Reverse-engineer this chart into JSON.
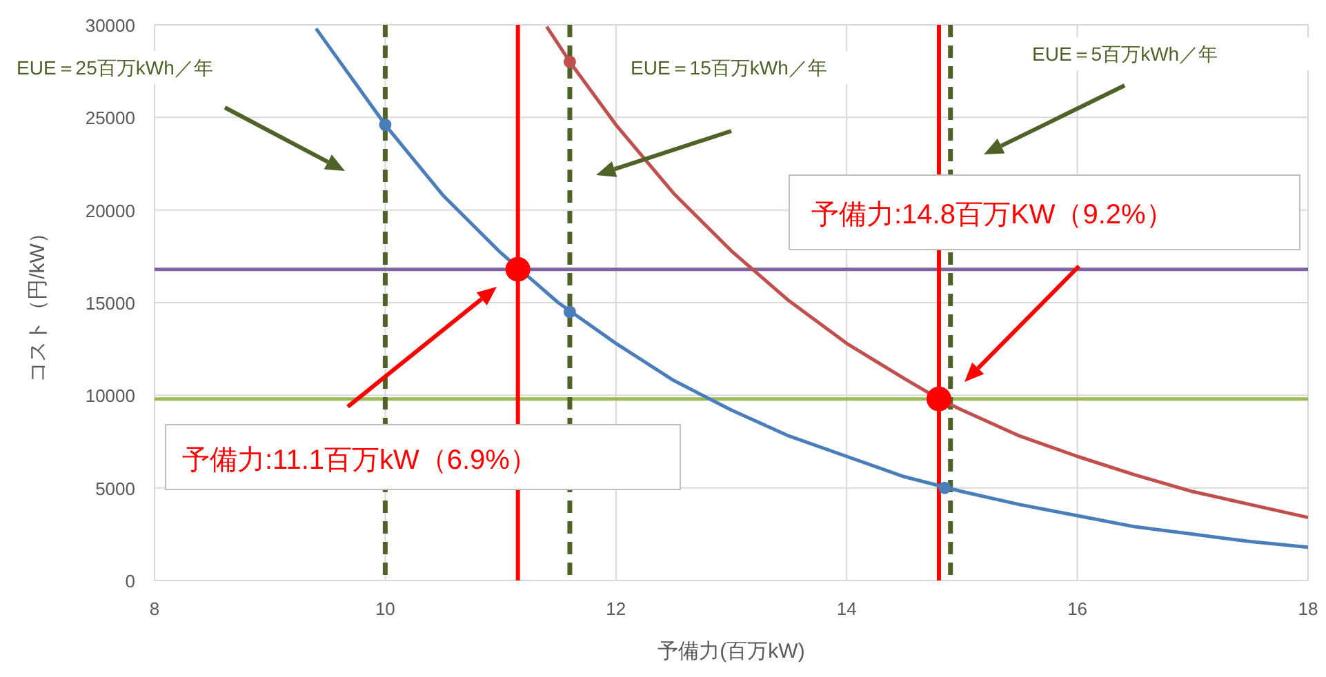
{
  "chart_data": {
    "type": "line",
    "xlabel": "予備力(百万kW)",
    "ylabel": "コスト（円/kW）",
    "xlim": [
      8,
      18
    ],
    "ylim": [
      0,
      30000
    ],
    "xticks": [
      8,
      10,
      12,
      14,
      16,
      18
    ],
    "yticks": [
      0,
      5000,
      10000,
      15000,
      20000,
      25000,
      30000
    ],
    "grid": true,
    "marker": "none",
    "line_style": "solid",
    "series": [
      {
        "color": "#4a7ebb",
        "x": [
          9.4,
          10,
          10.5,
          11,
          11.5,
          12,
          12.5,
          13,
          13.5,
          14,
          14.5,
          15,
          15.5,
          16,
          16.5,
          17,
          17.5,
          18
        ],
        "values": [
          29800,
          24600,
          20800,
          17700,
          15000,
          12800,
          10800,
          9200,
          7800,
          6700,
          5600,
          4800,
          4100,
          3500,
          2900,
          2500,
          2100,
          1800
        ]
      },
      {
        "color": "#c0504d",
        "x": [
          11.4,
          11.6,
          12,
          12.5,
          13,
          13.5,
          14,
          14.5,
          14.8,
          15,
          15.5,
          16,
          16.5,
          17,
          17.5,
          18
        ],
        "values": [
          29900,
          28000,
          24600,
          20900,
          17800,
          15100,
          12800,
          10900,
          9800,
          9200,
          7800,
          6700,
          5700,
          4800,
          4100,
          3400
        ]
      },
      {
        "type": "scatter",
        "color": "#4a7ebb",
        "marker": "circle",
        "x": [
          10,
          11.6,
          14.85
        ],
        "values": [
          24600,
          14500,
          5000
        ]
      },
      {
        "type": "scatter",
        "color": "#c0504d",
        "marker": "circle",
        "x": [
          11.6
        ],
        "values": [
          28000
        ]
      },
      {
        "type": "scatter",
        "color": "#ff0000",
        "marker": "circle",
        "x": [
          11.15,
          14.8
        ],
        "values": [
          16800,
          9800
        ]
      }
    ],
    "ref_lines": [
      {
        "axis": "y",
        "value": 16800,
        "color": "#8064a2",
        "line_style": "solid"
      },
      {
        "axis": "y",
        "value": 9800,
        "color": "#9bbb59",
        "line_style": "solid"
      },
      {
        "axis": "x",
        "value": 11.15,
        "color": "#ff0000",
        "line_style": "solid",
        "label": "予備力:11.1百万kW（6.9%）"
      },
      {
        "axis": "x",
        "value": 14.8,
        "color": "#ff0000",
        "line_style": "solid",
        "label": "予備力:14.8百万KW（9.2%）"
      },
      {
        "axis": "x",
        "value": 10,
        "color": "#4f6228",
        "line_style": "dashed",
        "label": "EUE＝25百万kWh／年"
      },
      {
        "axis": "x",
        "value": 11.6,
        "color": "#4f6228",
        "line_style": "dashed",
        "label": "EUE＝15百万kWh／年"
      },
      {
        "axis": "x",
        "value": 14.9,
        "color": "#4f6228",
        "line_style": "dashed",
        "label": "EUE＝5百万kWh／年"
      }
    ]
  }
}
